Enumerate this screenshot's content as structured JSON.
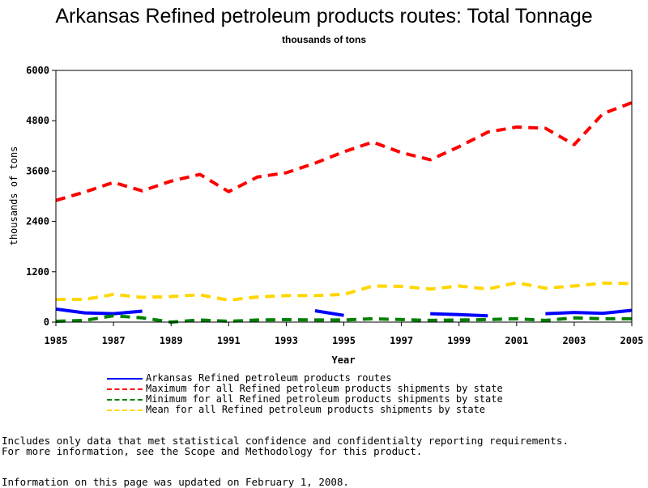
{
  "chart_data": {
    "type": "line",
    "title": "Arkansas Refined petroleum products routes: Total Tonnage",
    "subtitle": "thousands of tons",
    "xlabel": "Year",
    "ylabel": "thousands of tons",
    "xlim": [
      1985,
      2005
    ],
    "ylim": [
      0,
      6000
    ],
    "x_ticks": [
      "1985",
      "1987",
      "1989",
      "1991",
      "1993",
      "1995",
      "1997",
      "1999",
      "2001",
      "2003",
      "2005"
    ],
    "y_ticks": [
      "0",
      "1200",
      "2400",
      "3600",
      "4800",
      "6000"
    ],
    "x": [
      1985,
      1986,
      1987,
      1988,
      1989,
      1990,
      1991,
      1992,
      1993,
      1994,
      1995,
      1996,
      1997,
      1998,
      1999,
      2000,
      2001,
      2002,
      2003,
      2004,
      2005
    ],
    "grid": false,
    "legend_position": "bottom",
    "series": [
      {
        "name": "Arkansas Refined petroleum products routes",
        "color": "#0000ff",
        "dash": "solid",
        "values": [
          310,
          220,
          200,
          260,
          null,
          null,
          null,
          null,
          null,
          270,
          160,
          null,
          null,
          200,
          180,
          150,
          null,
          200,
          230,
          210,
          280
        ]
      },
      {
        "name": "Maximum for all Refined petroleum products shipments by state",
        "color": "#ff0000",
        "dash": "dashed",
        "values": [
          2900,
          3100,
          3330,
          3130,
          3360,
          3520,
          3110,
          3460,
          3560,
          3790,
          4060,
          4290,
          4040,
          3870,
          4180,
          4530,
          4650,
          4620,
          4230,
          4970,
          5230
        ]
      },
      {
        "name": "Minimum for all Refined petroleum products shipments by state",
        "color": "#008000",
        "dash": "dashed",
        "values": [
          20,
          40,
          150,
          100,
          0,
          50,
          20,
          50,
          60,
          50,
          50,
          80,
          60,
          40,
          50,
          60,
          80,
          40,
          100,
          80,
          80
        ]
      },
      {
        "name": "Mean for all Refined petroleum products shipments by state",
        "color": "#ffd700",
        "dash": "dashed",
        "values": [
          540,
          540,
          660,
          590,
          610,
          650,
          520,
          600,
          630,
          630,
          660,
          860,
          850,
          790,
          860,
          790,
          940,
          810,
          860,
          930,
          920
        ]
      }
    ]
  },
  "notes": {
    "line1": "Includes only data that met statistical confidence and confidentialty reporting requirements.",
    "line2": "For more information, see the Scope and Methodology for this product.",
    "updated": "Information on this page was updated on February 1, 2008."
  }
}
